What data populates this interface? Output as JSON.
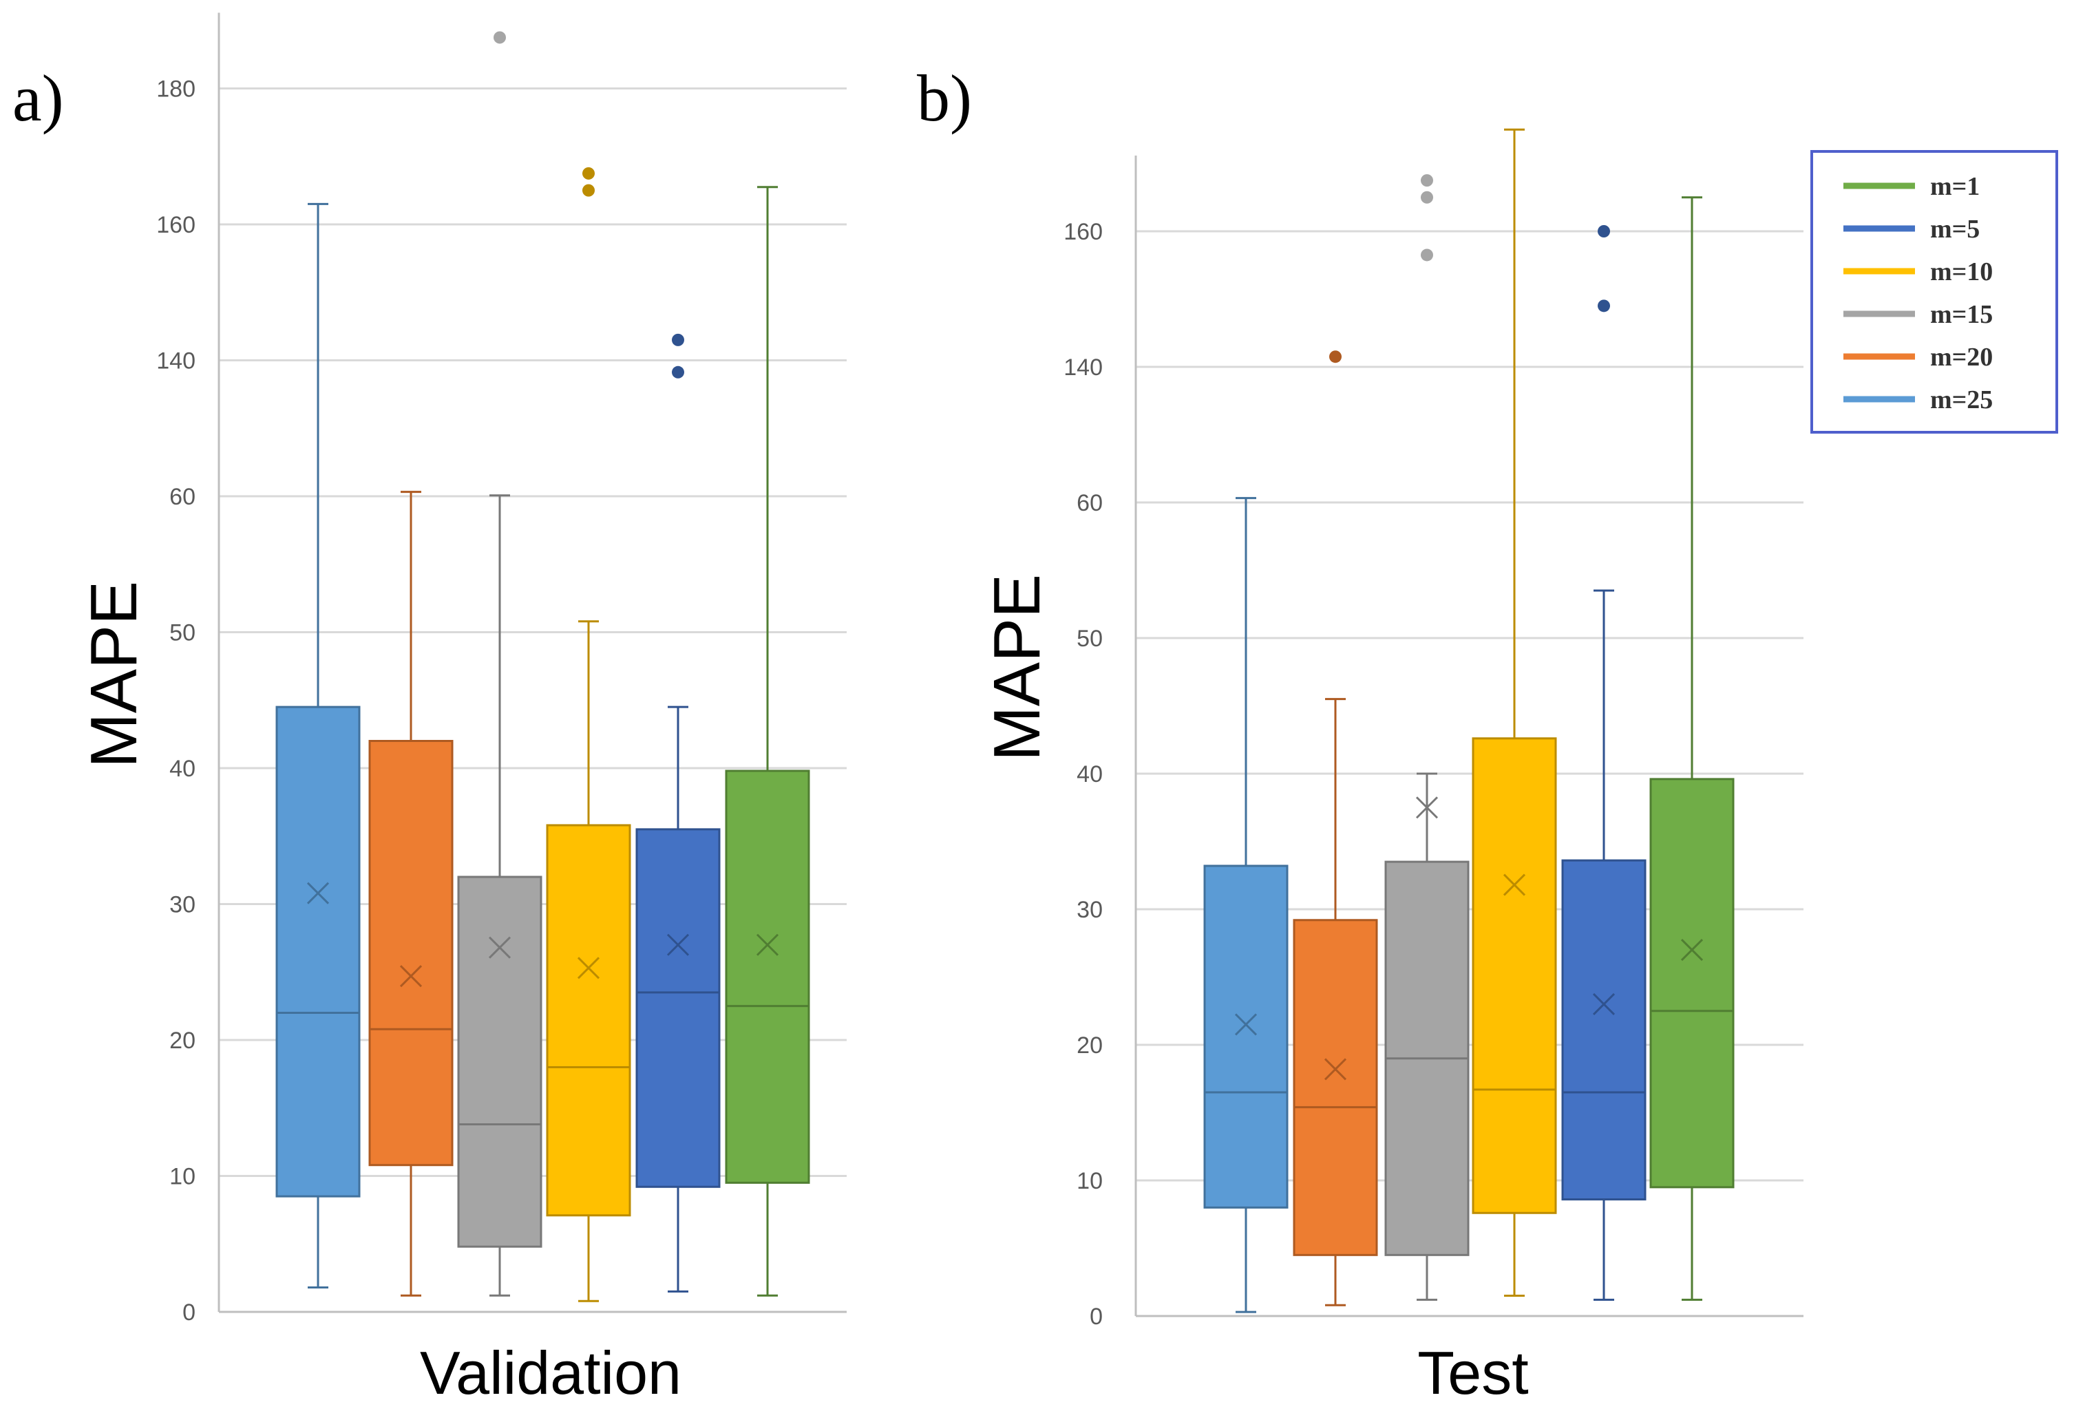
{
  "chart_data": [
    {
      "type": "boxplot",
      "panel_label": "a)",
      "xlabel": "Validation",
      "ylabel": "MAPE",
      "grid": true,
      "y_ticks": [
        "0",
        "10",
        "20",
        "30",
        "40",
        "50",
        "60",
        "140",
        "160",
        "180"
      ],
      "boxes": [
        {
          "series": "m=25",
          "min": 1.8,
          "q1": 8.5,
          "median": 22,
          "q3": 44.5,
          "max": 163,
          "mean": 30.8,
          "outliers": []
        },
        {
          "series": "m=20",
          "min": 1.2,
          "q1": 10.8,
          "median": 20.8,
          "q3": 42,
          "max": 62.6,
          "mean": 24.7,
          "outliers": []
        },
        {
          "series": "m=15",
          "min": 1.2,
          "q1": 4.8,
          "median": 13.8,
          "q3": 32,
          "max": 60.5,
          "mean": 26.8,
          "outliers": [
            187.5
          ]
        },
        {
          "series": "m=10",
          "min": 0.8,
          "q1": 7.1,
          "median": 18,
          "q3": 35.8,
          "max": 50.8,
          "mean": 25.3,
          "outliers": [
            167.5,
            165
          ]
        },
        {
          "series": "m=5",
          "min": 1.5,
          "q1": 9.2,
          "median": 23.5,
          "q3": 35.5,
          "max": 44.5,
          "mean": 27,
          "outliers": [
            143,
            133
          ]
        },
        {
          "series": "m=1",
          "min": 1.2,
          "q1": 9.5,
          "median": 22.5,
          "q3": 39.8,
          "max": 165.5,
          "mean": 27,
          "outliers": []
        }
      ]
    },
    {
      "type": "boxplot",
      "panel_label": "b)",
      "xlabel": "Test",
      "ylabel": "MAPE",
      "grid": true,
      "y_ticks": [
        "0",
        "10",
        "20",
        "30",
        "40",
        "50",
        "60",
        "140",
        "160"
      ],
      "boxes": [
        {
          "series": "m=25",
          "min": 0.3,
          "q1": 8,
          "median": 16.5,
          "q3": 33.2,
          "max": 62.6,
          "mean": 21.5,
          "outliers": []
        },
        {
          "series": "m=20",
          "min": 0.8,
          "q1": 4.5,
          "median": 15.4,
          "q3": 29.2,
          "max": 45.5,
          "mean": 18.2,
          "outliers": [
            141.5
          ]
        },
        {
          "series": "m=15",
          "min": 1.2,
          "q1": 4.5,
          "median": 19,
          "q3": 33.5,
          "max": 40,
          "mean": 37.5,
          "outliers": [
            167.5,
            165,
            156.5
          ]
        },
        {
          "series": "m=10",
          "min": 1.5,
          "q1": 7.6,
          "median": 16.7,
          "q3": 42.6,
          "max": 175,
          "mean": 31.8,
          "outliers": []
        },
        {
          "series": "m=5",
          "min": 1.2,
          "q1": 8.6,
          "median": 16.5,
          "q3": 33.6,
          "max": 53.5,
          "mean": 23,
          "outliers": [
            160,
            149
          ]
        },
        {
          "series": "m=1",
          "min": 1.2,
          "q1": 9.5,
          "median": 22.5,
          "q3": 39.6,
          "max": 165,
          "mean": 27,
          "outliers": []
        }
      ]
    }
  ],
  "legend": {
    "items": [
      {
        "label": "m=1",
        "color": "#70AD47"
      },
      {
        "label": "m=5",
        "color": "#4472C4"
      },
      {
        "label": "m=10",
        "color": "#FFC000"
      },
      {
        "label": "m=15",
        "color": "#A5A5A5"
      },
      {
        "label": "m=20",
        "color": "#ED7D31"
      },
      {
        "label": "m=25",
        "color": "#5B9BD5"
      }
    ]
  },
  "colors": {
    "m=25": "#5B9BD5",
    "m=20": "#ED7D31",
    "m=15": "#A5A5A5",
    "m=10": "#FFC000",
    "m=5": "#4472C4",
    "m=1": "#70AD47",
    "edge_m=25": "#41719C",
    "edge_m=20": "#AE5A21",
    "edge_m=15": "#787878",
    "edge_m=10": "#BC8C00",
    "edge_m=5": "#2F528F",
    "edge_m=1": "#507E32",
    "grid": "#D9D9D9",
    "axis": "#BFBFBF"
  }
}
